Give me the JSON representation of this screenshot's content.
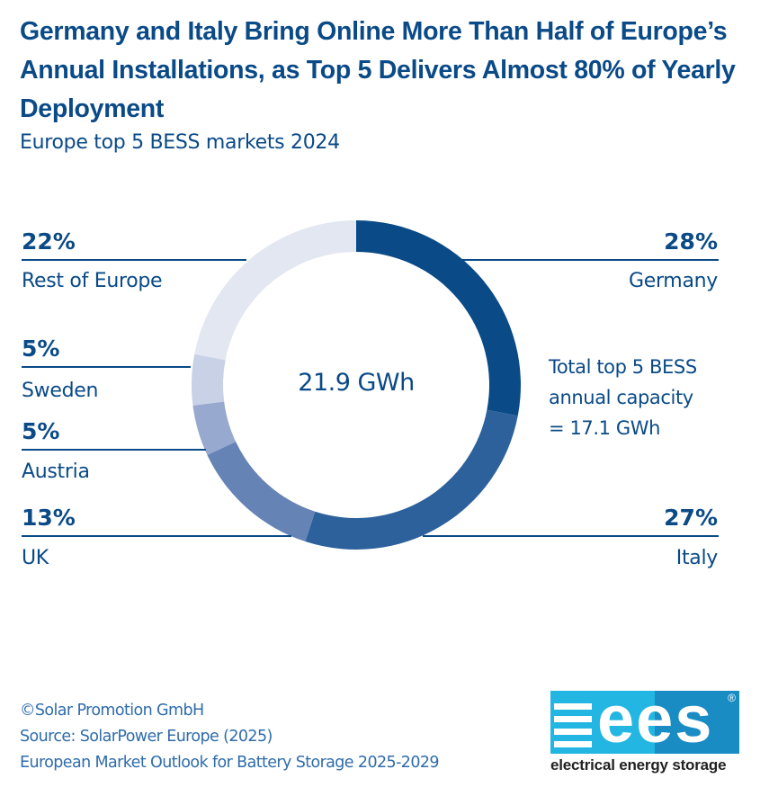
{
  "header": {
    "title": "Germany and Italy Bring Online More Than Half of Europe’s Annual Installations, as Top 5 Delivers Almost 80% of Yearly Deployment",
    "subtitle": "Europe top 5 BESS markets 2024"
  },
  "chart_data": {
    "type": "pie",
    "variant": "donut",
    "title": "Germany and Italy Bring Online More Than Half of Europe’s Annual Installations, as Top 5 Delivers Almost 80% of Yearly Deployment",
    "subtitle": "Europe top 5 BESS markets 2024",
    "center_label": "21.9 GWh",
    "unit": "%",
    "slices": [
      {
        "name": "Germany",
        "label": "28%",
        "value": 28,
        "color": "#0a4a87"
      },
      {
        "name": "Italy",
        "label": "27%",
        "value": 27,
        "color": "#2c619c"
      },
      {
        "name": "UK",
        "label": "13%",
        "value": 13,
        "color": "#6683b6"
      },
      {
        "name": "Austria",
        "label": "5%",
        "value": 5,
        "color": "#97a9cf"
      },
      {
        "name": "Sweden",
        "label": "5%",
        "value": 5,
        "color": "#c8d1e6"
      },
      {
        "name": "Rest of Europe",
        "label": "22%",
        "value": 22,
        "color": "#e3e7f2"
      }
    ],
    "annotation": "Total top 5 BESS annual capacity = 17.1 GWh"
  },
  "annotation": {
    "lines": [
      "Total top 5 BESS",
      "annual capacity",
      "= 17.1 GWh"
    ]
  },
  "footer": {
    "lines": [
      "©Solar Promotion GmbH",
      "Source: SolarPower Europe (2025)",
      "European Market Outlook for Battery Storage 2025-2029"
    ]
  },
  "logo": {
    "wordmark": "ees",
    "registered": "®",
    "tagline": "electrical energy storage"
  }
}
